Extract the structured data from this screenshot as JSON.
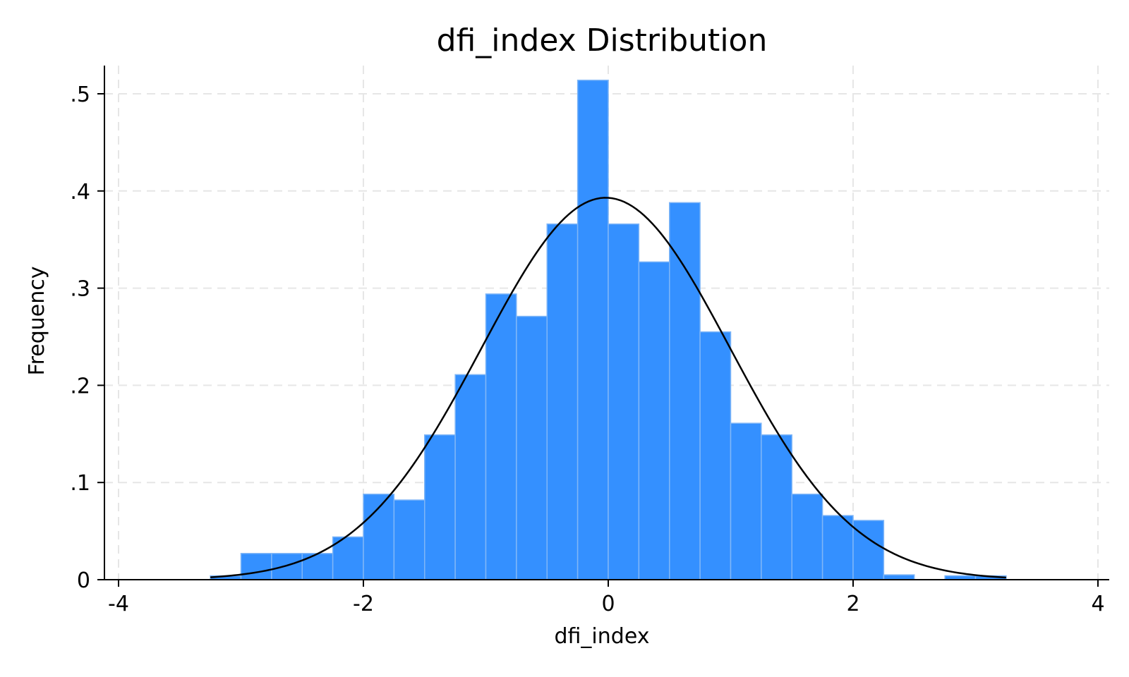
{
  "chart_data": {
    "type": "bar",
    "subtype": "histogram",
    "title": "dfi_index Distribution",
    "xlabel": "dfi_index",
    "ylabel": "Frequency",
    "xlim": [
      -4,
      4
    ],
    "ylim": [
      0,
      0.53
    ],
    "xticks": [
      -4,
      -2,
      0,
      2,
      4
    ],
    "xtick_labels": [
      "-4",
      "-2",
      "0",
      "2",
      "4"
    ],
    "yticks": [
      0,
      0.1,
      0.2,
      0.3,
      0.4,
      0.5
    ],
    "ytick_labels": [
      "0",
      ".1",
      ".2",
      ".3",
      ".4",
      ".5"
    ],
    "grid": true,
    "bin_edges": [
      -3.25,
      -3.0,
      -2.75,
      -2.5,
      -2.25,
      -2.0,
      -1.75,
      -1.5,
      -1.25,
      -1.0,
      -0.75,
      -0.5,
      -0.25,
      0.0,
      0.25,
      0.5,
      0.75,
      1.0,
      1.25,
      1.5,
      1.75,
      2.0,
      2.25,
      2.5,
      2.75,
      3.0,
      3.25
    ],
    "values": [
      0.004,
      0.027,
      0.027,
      0.027,
      0.044,
      0.088,
      0.082,
      0.149,
      0.211,
      0.294,
      0.271,
      0.366,
      0.514,
      0.366,
      0.327,
      0.388,
      0.255,
      0.161,
      0.149,
      0.088,
      0.066,
      0.061,
      0.005,
      0.0,
      0.004,
      0.004
    ],
    "overlay": {
      "type": "normal_density",
      "mean": -0.02,
      "sd": 1.015,
      "x_range": [
        -3.25,
        3.25
      ]
    },
    "colors": {
      "bar_fill": "#3490ff",
      "bar_edge": "#7fb6f7",
      "curve": "#000000",
      "grid": "#e6e6e6",
      "axis": "#000000"
    }
  }
}
